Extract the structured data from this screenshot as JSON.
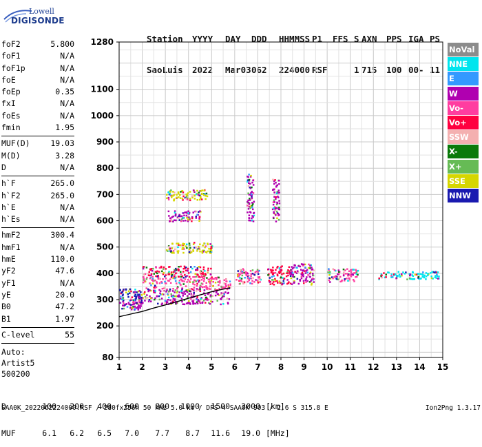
{
  "logo": {
    "line1": "Lowell",
    "line2": "DIGISONDE"
  },
  "header": {
    "row1": [
      "Station",
      "YYYY",
      "DAY",
      "DDD",
      "HHMMSS",
      "P1",
      "FFS",
      "S",
      "AXN",
      "PPS",
      "IGA",
      "PS"
    ],
    "row2": [
      "SaoLuis",
      "2022",
      "Mar03",
      "062",
      "224000",
      "RSF",
      "",
      "1",
      "715",
      "100",
      "00-",
      "11"
    ]
  },
  "params": [
    {
      "group": [
        {
          "name": "foF2",
          "value": "5.800"
        },
        {
          "name": "foF1",
          "value": "N/A"
        },
        {
          "name": "foF1p",
          "value": "N/A"
        },
        {
          "name": "foE",
          "value": "N/A"
        },
        {
          "name": "foEp",
          "value": "0.35"
        },
        {
          "name": "fxI",
          "value": "N/A"
        },
        {
          "name": "foEs",
          "value": "N/A"
        },
        {
          "name": "fmin",
          "value": "1.95"
        }
      ]
    },
    {
      "group": [
        {
          "name": "MUF(D)",
          "value": "19.03"
        },
        {
          "name": "M(D)",
          "value": "3.28"
        },
        {
          "name": "D",
          "value": "N/A"
        }
      ]
    },
    {
      "group": [
        {
          "name": "h`F",
          "value": "265.0"
        },
        {
          "name": "h`F2",
          "value": "265.0"
        },
        {
          "name": "h`E",
          "value": "N/A"
        },
        {
          "name": "h`Es",
          "value": "N/A"
        }
      ]
    },
    {
      "group": [
        {
          "name": "hmF2",
          "value": "300.4"
        },
        {
          "name": "hmF1",
          "value": "N/A"
        },
        {
          "name": "hmE",
          "value": "110.0"
        },
        {
          "name": "yF2",
          "value": "47.6"
        },
        {
          "name": "yF1",
          "value": "N/A"
        },
        {
          "name": "yE",
          "value": "20.0"
        },
        {
          "name": "B0",
          "value": "47.2"
        },
        {
          "name": "B1",
          "value": "1.97"
        }
      ]
    },
    {
      "group": [
        {
          "name": "C-level",
          "value": "55"
        }
      ]
    }
  ],
  "auto": [
    "Auto:",
    "Artist5",
    "500200"
  ],
  "legend": [
    {
      "label": "NoVal",
      "color": "#8c8c8c"
    },
    {
      "label": "NNE",
      "color": "#00e5ee"
    },
    {
      "label": "E",
      "color": "#3399ff"
    },
    {
      "label": "W",
      "color": "#b000b0"
    },
    {
      "label": "Vo-",
      "color": "#ff3da0"
    },
    {
      "label": "Vo+",
      "color": "#ff0040"
    },
    {
      "label": "SSW",
      "color": "#f4b0b0"
    },
    {
      "label": "X-",
      "color": "#0a7a0a"
    },
    {
      "label": "X+",
      "color": "#66bb55"
    },
    {
      "label": "SSE",
      "color": "#d6d600"
    },
    {
      "label": "NNW",
      "color": "#1a1ab0"
    }
  ],
  "bottom": {
    "d_label": "D",
    "d_values": [
      "100",
      "200",
      "400",
      "600",
      "800",
      "1000",
      "1500",
      "3000"
    ],
    "d_unit": "[km]",
    "muf_label": "MUF",
    "muf_values": [
      "6.1",
      "6.2",
      "6.5",
      "7.0",
      "7.7",
      "8.7",
      "11.6",
      "19.0"
    ],
    "muf_unit": "[MHz]"
  },
  "footer": {
    "left": "SAA0K_2022062224000.RSF / 280fx256h 50 kHz 5.0 km / DPS-4 SAA0K 903 / 2.6 S 315.8 E",
    "right": "Ion2Png 1.3.17"
  },
  "chart_data": {
    "type": "scatter",
    "x_ticks": [
      1,
      2,
      3,
      4,
      5,
      6,
      7,
      8,
      9,
      10,
      11,
      12,
      13,
      14,
      15
    ],
    "y_ticks": [
      80,
      200,
      300,
      400,
      500,
      600,
      700,
      800,
      900,
      1000,
      1100,
      1280
    ],
    "xlim": [
      1,
      15
    ],
    "ylim": [
      80,
      1280
    ],
    "grid": true,
    "legend_position": "right",
    "trace_profile": {
      "x": [
        1.0,
        1.5,
        2.0,
        2.5,
        3.0,
        3.5,
        4.0,
        4.5,
        5.0,
        5.5,
        5.8
      ],
      "y": [
        235,
        245,
        255,
        268,
        280,
        292,
        305,
        318,
        330,
        340,
        345
      ]
    },
    "clusters": [
      {
        "x": [
          1.0,
          2.0
        ],
        "y": [
          265,
          300
        ],
        "color": "#b000b0"
      },
      {
        "x": [
          1.0,
          2.0
        ],
        "y": [
          300,
          345
        ],
        "color": "#1a1ab0"
      },
      {
        "x": [
          1.8,
          5.8
        ],
        "y": [
          285,
          340
        ],
        "color": "#b000b0"
      },
      {
        "x": [
          2.0,
          5.8
        ],
        "y": [
          340,
          390
        ],
        "color": "#ff3da0"
      },
      {
        "x": [
          2.0,
          5.0
        ],
        "y": [
          390,
          430
        ],
        "color": "#ff0040"
      },
      {
        "x": [
          3.0,
          5.0
        ],
        "y": [
          480,
          520
        ],
        "color": "#d6d600"
      },
      {
        "x": [
          3.0,
          4.5
        ],
        "y": [
          600,
          640
        ],
        "color": "#b000b0"
      },
      {
        "x": [
          3.0,
          4.8
        ],
        "y": [
          680,
          720
        ],
        "color": "#d6d600"
      },
      {
        "x": [
          6.0,
          7.1
        ],
        "y": [
          360,
          420
        ],
        "color": "#ff3da0"
      },
      {
        "x": [
          6.5,
          6.8
        ],
        "y": [
          600,
          780
        ],
        "color": "#b000b0"
      },
      {
        "x": [
          7.4,
          8.4
        ],
        "y": [
          360,
          430
        ],
        "color": "#ff0040"
      },
      {
        "x": [
          7.6,
          7.9
        ],
        "y": [
          600,
          760
        ],
        "color": "#b000b0"
      },
      {
        "x": [
          8.4,
          9.4
        ],
        "y": [
          360,
          440
        ],
        "color": "#b000b0"
      },
      {
        "x": [
          10.0,
          11.3
        ],
        "y": [
          370,
          420
        ],
        "color": "#ff3da0"
      },
      {
        "x": [
          12.2,
          14.8
        ],
        "y": [
          380,
          410
        ],
        "color": "#00e5ee"
      }
    ]
  }
}
